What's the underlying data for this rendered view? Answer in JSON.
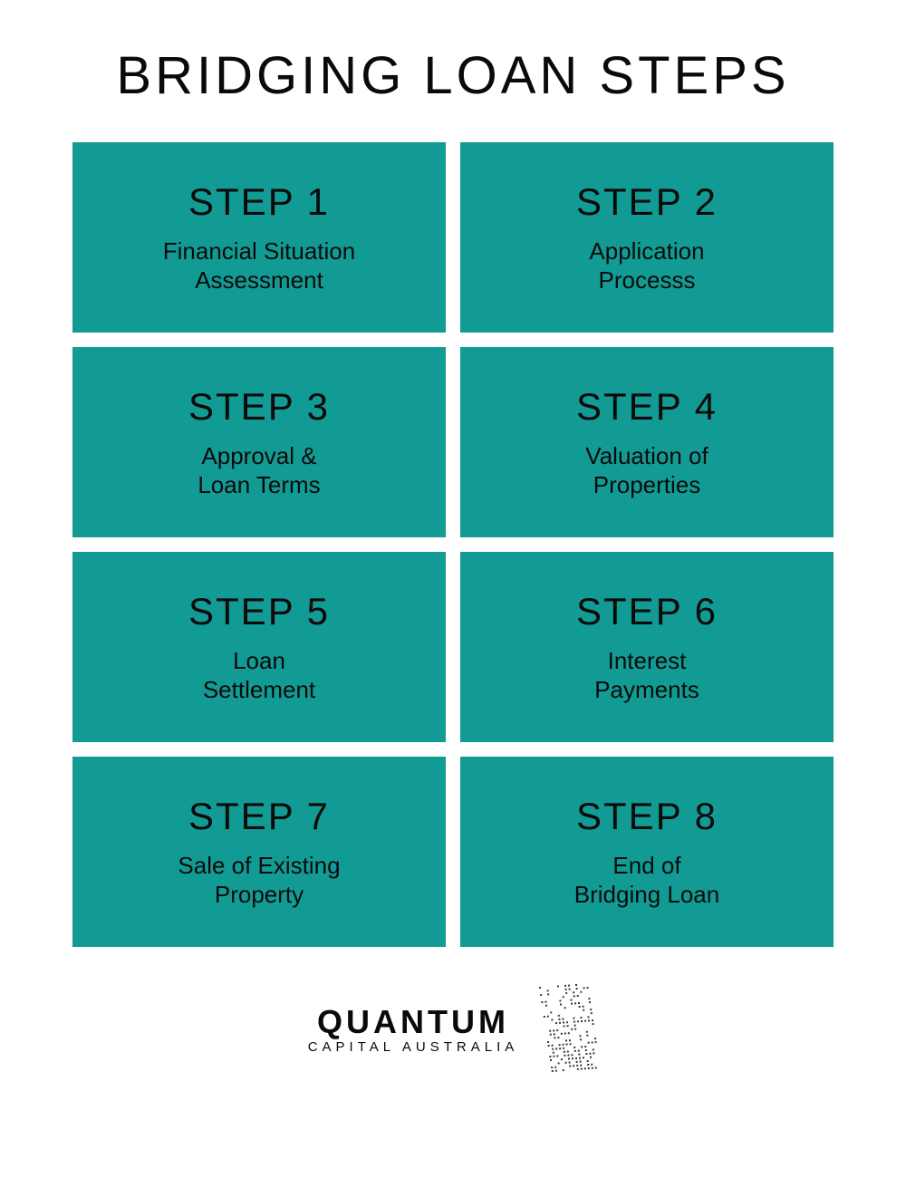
{
  "title": "BRIDGING LOAN STEPS",
  "style": {
    "background_color": "#ffffff",
    "card_color": "#129b94",
    "text_color": "#0a0a0a",
    "title_fontsize": 58,
    "step_label_fontsize": 42,
    "step_desc_fontsize": 26,
    "grid_columns": 2,
    "grid_gap": 16,
    "card_min_height": 210,
    "letter_spacing_title": 4,
    "letter_spacing_step": 2
  },
  "steps": [
    {
      "label": "STEP 1",
      "desc": "Financial Situation\nAssessment"
    },
    {
      "label": "STEP 2",
      "desc": "Application\nProcesss"
    },
    {
      "label": "STEP 3",
      "desc": "Approval &\nLoan Terms"
    },
    {
      "label": "STEP 4",
      "desc": "Valuation of\nProperties"
    },
    {
      "label": "STEP 5",
      "desc": "Loan\nSettlement"
    },
    {
      "label": "STEP 6",
      "desc": "Interest\nPayments"
    },
    {
      "label": "STEP 7",
      "desc": "Sale of Existing\nProperty"
    },
    {
      "label": "STEP 8",
      "desc": "End of\nBridging Loan"
    }
  ],
  "logo": {
    "main": "QUANTUM",
    "sub": "CAPITAL AUSTRALIA",
    "dot_color": "#3a3a3a",
    "dot_size": 2
  }
}
